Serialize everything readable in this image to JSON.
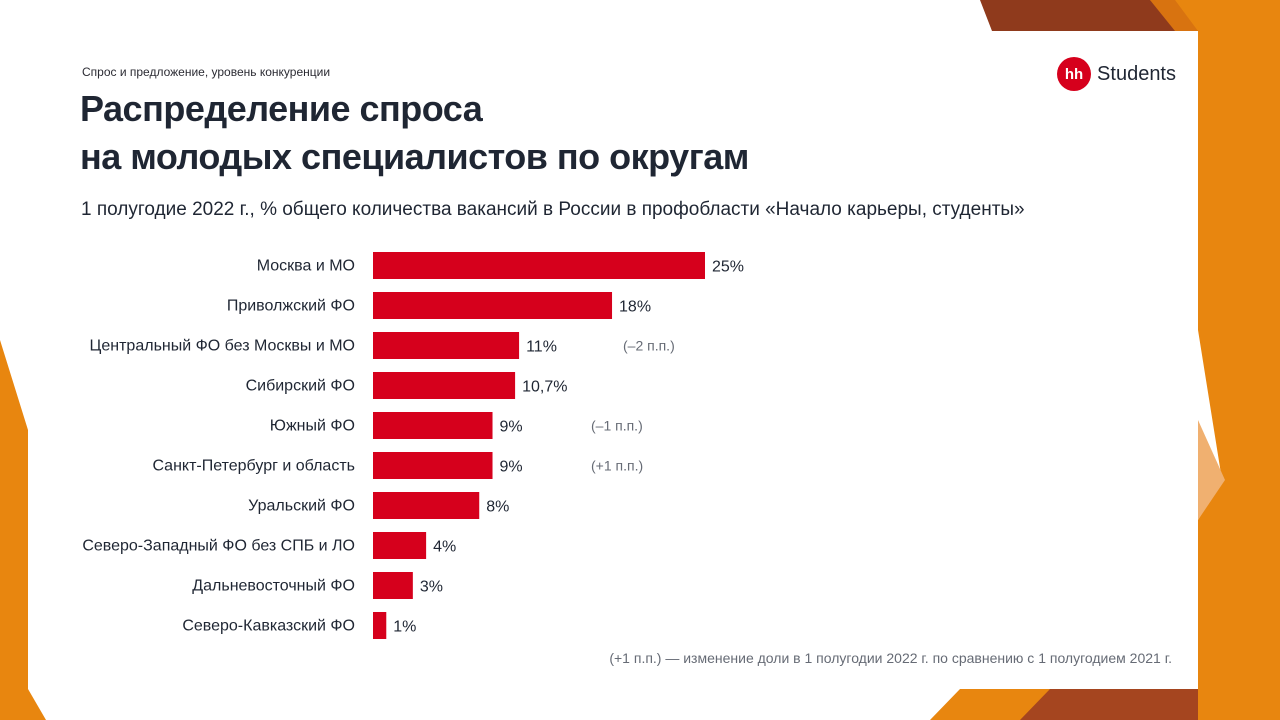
{
  "slide": {
    "section_label": "Спрос и предложение, уровень конкуренции",
    "title_line1": "Распределение спроса",
    "title_line2": "на молодых специалистов по округам",
    "subtitle": "1 полугодие 2022 г., % общего количества вакансий в России в профобласти «Начало карьеры, студенты»",
    "logo_mark": "hh",
    "logo_text": "Students",
    "footnote": "(+1 п.п.) — изменение доли в 1 полугодии 2022 г. по сравнению с 1 полугодием 2021 г."
  },
  "colors": {
    "bar": "#d6001c",
    "accent_orange": "#e8860f",
    "accent_brown": "#9b3f1f",
    "text": "#1f2633",
    "muted": "#666b75"
  },
  "chart_data": {
    "type": "bar",
    "orientation": "horizontal",
    "categories": [
      "Москва и МО",
      "Приволжский ФО",
      "Центральный ФО без Москвы и МО",
      "Сибирский ФО",
      "Южный ФО",
      "Санкт-Петербург и область",
      "Уральский ФО",
      "Северо-Западный ФО без СПБ и ЛО",
      "Дальневосточный ФО",
      "Северо-Кавказский ФО"
    ],
    "values": [
      25,
      18,
      11,
      10.7,
      9,
      9,
      8,
      4,
      3,
      1
    ],
    "value_labels": [
      "25%",
      "18%",
      "11%",
      "10,7%",
      "9%",
      "9%",
      "8%",
      "4%",
      "3%",
      "1%"
    ],
    "annotations": [
      "",
      "",
      "(–2 п.п.)",
      "",
      "(–1 п.п.)",
      "(+1 п.п.)",
      "",
      "",
      "",
      ""
    ],
    "grid": false,
    "legend": "none"
  }
}
